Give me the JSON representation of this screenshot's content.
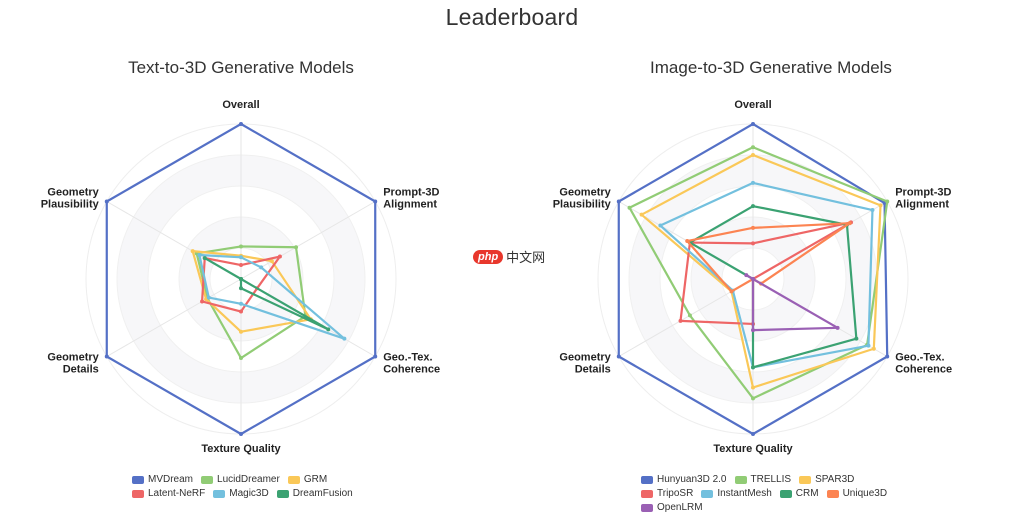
{
  "page": {
    "title": "Leaderboard"
  },
  "watermark": {
    "badge": "php",
    "text": "中文网"
  },
  "chart_data": [
    {
      "type": "radar",
      "title": "Text-to-3D Generative Models",
      "axes": [
        "Overall",
        "Prompt-3D Alignment",
        "Geo.-Tex. Coherence",
        "Texture Quality",
        "Geometry Details",
        "Geometry Plausibility"
      ],
      "series": [
        {
          "name": "MVDream",
          "color": "#5470c6",
          "values": [
            1.0,
            1.0,
            1.0,
            1.0,
            1.0,
            1.0
          ]
        },
        {
          "name": "LucidDreamer",
          "color": "#91cc75",
          "values": [
            0.21,
            0.41,
            0.48,
            0.51,
            0.25,
            0.33
          ]
        },
        {
          "name": "GRM",
          "color": "#fac858",
          "values": [
            0.15,
            0.23,
            0.52,
            0.34,
            0.26,
            0.36
          ]
        },
        {
          "name": "Latent-NeRF",
          "color": "#ee6666",
          "values": [
            0.09,
            0.29,
            0.12,
            0.21,
            0.29,
            0.27
          ]
        },
        {
          "name": "Magic3D",
          "color": "#73c0de",
          "values": [
            0.14,
            0.15,
            0.77,
            0.16,
            0.24,
            0.31
          ]
        },
        {
          "name": "DreamFusion",
          "color": "#3ba272",
          "values": [
            0.0,
            0.0,
            0.65,
            0.06,
            0.0,
            0.27
          ]
        }
      ]
    },
    {
      "type": "radar",
      "title": "Image-to-3D Generative Models",
      "axes": [
        "Overall",
        "Prompt-3D Alignment",
        "Geo.-Tex. Coherence",
        "Texture Quality",
        "Geometry Details",
        "Geometry Plausibility"
      ],
      "series": [
        {
          "name": "Hunyuan3D 2.0",
          "color": "#5470c6",
          "values": [
            1.0,
            0.98,
            1.0,
            1.0,
            1.0,
            1.0
          ]
        },
        {
          "name": "TRELLIS",
          "color": "#91cc75",
          "values": [
            0.85,
            1.0,
            0.85,
            0.77,
            0.47,
            0.92
          ]
        },
        {
          "name": "SPAR3D",
          "color": "#fac858",
          "values": [
            0.8,
            0.95,
            0.9,
            0.7,
            0.16,
            0.83
          ]
        },
        {
          "name": "TripoSR",
          "color": "#ee6666",
          "values": [
            0.23,
            0.73,
            0.0,
            0.29,
            0.54,
            0.47
          ]
        },
        {
          "name": "InstantMesh",
          "color": "#73c0de",
          "values": [
            0.62,
            0.89,
            0.86,
            0.57,
            0.15,
            0.69
          ]
        },
        {
          "name": "CRM",
          "color": "#3ba272",
          "values": [
            0.47,
            0.7,
            0.77,
            0.57,
            0.0,
            0.47
          ]
        },
        {
          "name": "Unique3D",
          "color": "#fc8452",
          "values": [
            0.33,
            0.72,
            0.06,
            0.0,
            0.16,
            0.49
          ]
        },
        {
          "name": "OpenLRM",
          "color": "#9a60b4",
          "values": [
            0.0,
            0.0,
            0.63,
            0.33,
            0.0,
            0.05
          ]
        }
      ]
    }
  ]
}
